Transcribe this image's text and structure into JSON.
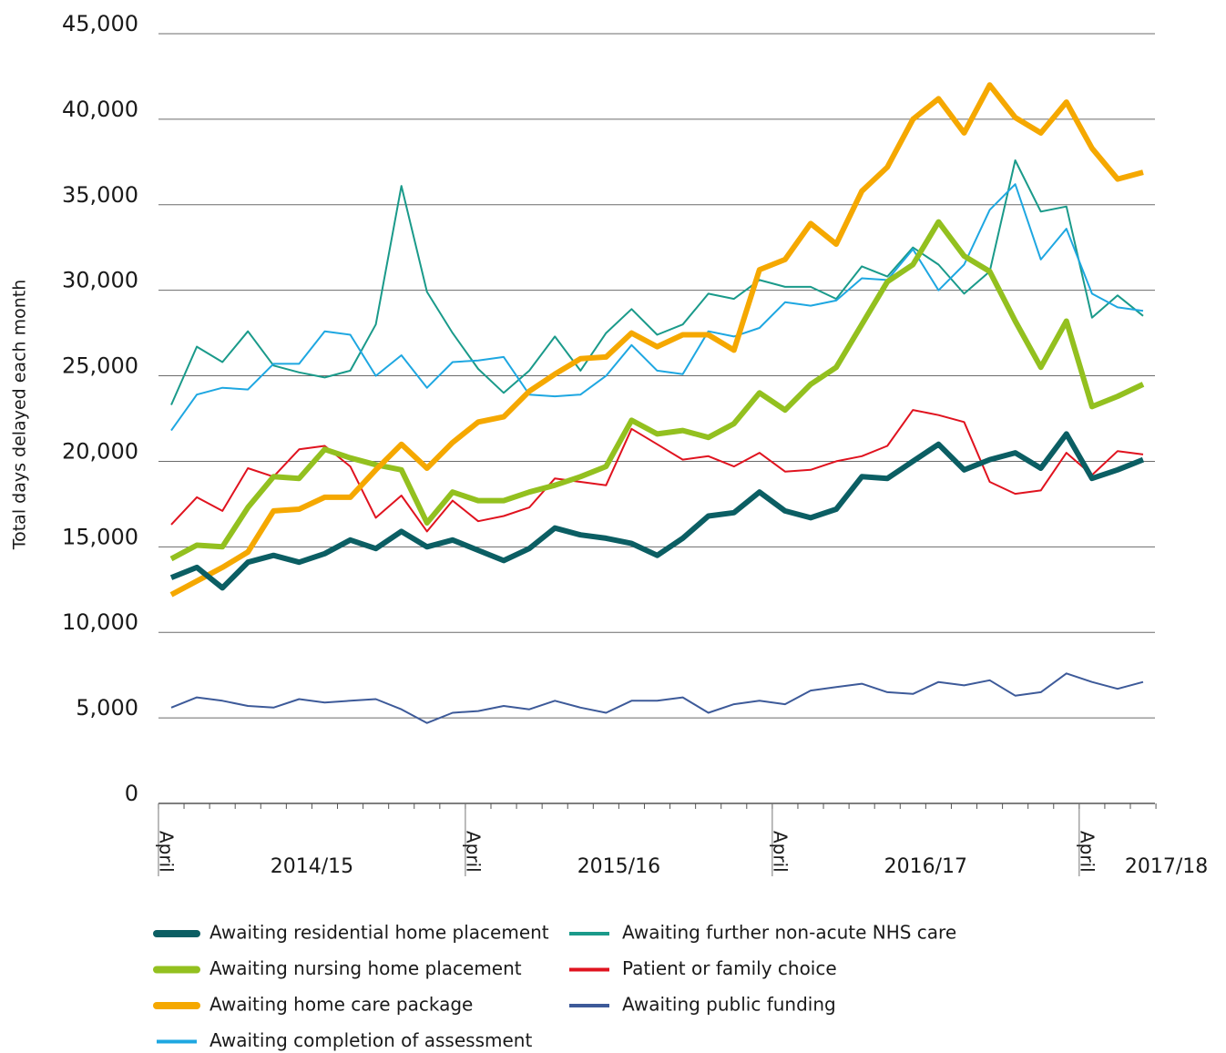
{
  "chart_data": {
    "type": "line",
    "y_axis_label": "Total days delayed each month",
    "categories": [
      "April",
      null,
      null,
      null,
      null,
      null,
      null,
      null,
      null,
      null,
      null,
      null,
      "April",
      null,
      null,
      null,
      null,
      null,
      null,
      null,
      null,
      null,
      null,
      null,
      "April",
      null,
      null,
      null,
      null,
      null,
      null,
      null,
      null,
      null,
      null,
      null,
      "April",
      null,
      null
    ],
    "periods": [
      "2014/15",
      "2015/16",
      "2016/17",
      "2017/18"
    ],
    "ylim": [
      0,
      45000
    ],
    "yticks": [
      0,
      {
        "value": 5000,
        "label": "5,000"
      },
      {
        "value": 10000,
        "label": "10,000"
      },
      {
        "value": 15000,
        "label": "15,000"
      },
      {
        "value": 20000,
        "label": "20,000"
      },
      {
        "value": 25000,
        "label": "25,000"
      },
      {
        "value": 30000,
        "label": "30,000"
      },
      {
        "value": 35000,
        "label": "35,000"
      },
      {
        "value": 40000,
        "label": "40,000"
      },
      {
        "value": 45000,
        "label": "45,000"
      }
    ],
    "grid": true,
    "series": [
      {
        "name": "Awaiting residential home placement",
        "color": "#0b5e63",
        "width": 6,
        "values": [
          13200,
          13800,
          12600,
          14100,
          14500,
          14100,
          14600,
          15400,
          14900,
          15900,
          15000,
          15400,
          14800,
          14200,
          14900,
          16100,
          15700,
          15500,
          15200,
          14500,
          15500,
          16800,
          17000,
          18200,
          17100,
          16700,
          17200,
          19100,
          19000,
          20000,
          21000,
          19500,
          20100,
          20500,
          19600,
          21600,
          19000,
          19500,
          20100
        ]
      },
      {
        "name": "Awaiting nursing home placement",
        "color": "#93c01f",
        "width": 6,
        "values": [
          14300,
          15100,
          15000,
          17300,
          19100,
          19000,
          20700,
          20200,
          19800,
          19500,
          16400,
          18200,
          17700,
          17700,
          18200,
          18600,
          19100,
          19700,
          22400,
          21600,
          21800,
          21400,
          22200,
          24000,
          23000,
          24500,
          25500,
          28000,
          30500,
          31500,
          34000,
          32000,
          31100,
          28200,
          25500,
          28200,
          23200,
          23800,
          24500
        ]
      },
      {
        "name": "Awaiting home care package",
        "color": "#f5a800",
        "width": 6,
        "values": [
          12200,
          13000,
          13800,
          14700,
          17100,
          17200,
          17900,
          17900,
          19500,
          21000,
          19600,
          21100,
          22300,
          22600,
          24100,
          25100,
          26000,
          26100,
          27500,
          26700,
          27400,
          27400,
          26500,
          31200,
          31800,
          33900,
          32700,
          35800,
          37200,
          40000,
          41200,
          39200,
          42000,
          40100,
          39200,
          41000,
          38300,
          36500,
          36900
        ]
      },
      {
        "name": "Awaiting completion of assessment",
        "color": "#1ea7e1",
        "width": 2,
        "values": [
          21800,
          23900,
          24300,
          24200,
          25700,
          25700,
          27600,
          27400,
          25000,
          26200,
          24300,
          25800,
          25900,
          26100,
          23900,
          23800,
          23900,
          25000,
          26800,
          25300,
          25100,
          27600,
          27300,
          27800,
          29300,
          29100,
          29400,
          30700,
          30600,
          32400,
          30000,
          31500,
          34700,
          36200,
          31800,
          33600,
          29800,
          29000,
          28800
        ]
      },
      {
        "name": "Awaiting further non-acute NHS care",
        "color": "#1a9a8a",
        "width": 2,
        "values": [
          23300,
          26700,
          25800,
          27600,
          25600,
          25200,
          24900,
          25300,
          28000,
          36100,
          29900,
          27500,
          25400,
          24000,
          25300,
          27300,
          25300,
          27500,
          28900,
          27400,
          28000,
          29800,
          29500,
          30600,
          30200,
          30200,
          29500,
          31400,
          30800,
          32500,
          31500,
          29800,
          31100,
          37600,
          34600,
          34900,
          28400,
          29700,
          28500
        ]
      },
      {
        "name": "Patient or family choice",
        "color": "#e0131f",
        "width": 2,
        "values": [
          16300,
          17900,
          17100,
          19600,
          19100,
          20700,
          20900,
          19700,
          16700,
          18000,
          15900,
          17700,
          16500,
          16800,
          17300,
          19000,
          18800,
          18600,
          21900,
          21000,
          20100,
          20300,
          19700,
          20500,
          19400,
          19500,
          20000,
          20300,
          20900,
          23000,
          22700,
          22300,
          18800,
          18100,
          18300,
          20500,
          19200,
          20600,
          20400
        ]
      },
      {
        "name": "Awaiting public funding",
        "color": "#3d5a99",
        "width": 2,
        "values": [
          5600,
          6200,
          6000,
          5700,
          5600,
          6100,
          5900,
          6000,
          6100,
          5500,
          4700,
          5300,
          5400,
          5700,
          5500,
          6000,
          5600,
          5300,
          6000,
          6000,
          6200,
          5300,
          5800,
          6000,
          5800,
          6600,
          6800,
          7000,
          6500,
          6400,
          7100,
          6900,
          7200,
          6300,
          6500,
          7600,
          7100,
          6700,
          7100
        ]
      }
    ]
  }
}
